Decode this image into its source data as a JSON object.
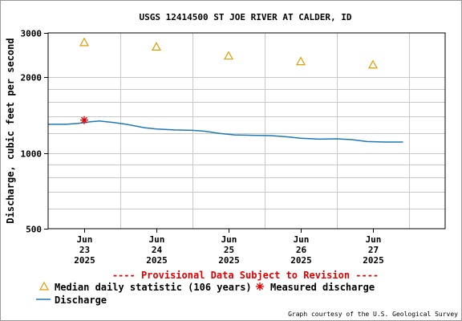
{
  "chart_data": {
    "type": "line",
    "title": "USGS 12414500 ST JOE RIVER AT CALDER, ID",
    "ylabel": "Discharge, cubic feet per second",
    "yscale": "log",
    "ylim": [
      500,
      3000
    ],
    "y_ticks": [
      500,
      1000,
      2000,
      3000
    ],
    "x_ticks": [
      {
        "day": "Jun",
        "date": "23",
        "year": "2025"
      },
      {
        "day": "Jun",
        "date": "24",
        "year": "2025"
      },
      {
        "day": "Jun",
        "date": "25",
        "year": "2025"
      },
      {
        "day": "Jun",
        "date": "26",
        "year": "2025"
      },
      {
        "day": "Jun",
        "date": "27",
        "year": "2025"
      }
    ],
    "xlim": [
      "2025-06-22 12:00",
      "2025-06-28 00:00"
    ],
    "grid": true,
    "series": [
      {
        "name": "Discharge",
        "color": "#1f78b4",
        "points": [
          [
            "2025-06-22 12:00",
            1300
          ],
          [
            "2025-06-22 18:00",
            1300
          ],
          [
            "2025-06-22 22:00",
            1310
          ],
          [
            "2025-06-23 02:00",
            1330
          ],
          [
            "2025-06-23 05:00",
            1340
          ],
          [
            "2025-06-23 10:00",
            1320
          ],
          [
            "2025-06-23 14:00",
            1300
          ],
          [
            "2025-06-23 20:00",
            1260
          ],
          [
            "2025-06-24 00:00",
            1245
          ],
          [
            "2025-06-24 06:00",
            1235
          ],
          [
            "2025-06-24 12:00",
            1230
          ],
          [
            "2025-06-24 16:00",
            1220
          ],
          [
            "2025-06-24 21:00",
            1195
          ],
          [
            "2025-06-25 02:00",
            1180
          ],
          [
            "2025-06-25 08:00",
            1175
          ],
          [
            "2025-06-25 14:00",
            1172
          ],
          [
            "2025-06-25 19:00",
            1160
          ],
          [
            "2025-06-26 00:00",
            1145
          ],
          [
            "2025-06-26 06:00",
            1135
          ],
          [
            "2025-06-26 12:00",
            1138
          ],
          [
            "2025-06-26 17:00",
            1130
          ],
          [
            "2025-06-26 22:00",
            1110
          ],
          [
            "2025-06-27 04:00",
            1105
          ],
          [
            "2025-06-27 10:00",
            1105
          ]
        ]
      },
      {
        "name": "Median daily statistic (106 years)",
        "color": "#e39b00",
        "marker": "triangle",
        "points": [
          [
            "2025-06-23 00:00",
            2750
          ],
          [
            "2025-06-24 00:00",
            2640
          ],
          [
            "2025-06-25 00:00",
            2430
          ],
          [
            "2025-06-26 00:00",
            2310
          ],
          [
            "2025-06-27 00:00",
            2240
          ]
        ]
      },
      {
        "name": "Measured discharge",
        "color": "#e00000",
        "marker": "asterisk",
        "points": [
          [
            "2025-06-23 00:00",
            1350
          ]
        ]
      }
    ]
  },
  "provisional_notice": "---- Provisional Data Subject to Revision ----",
  "credit": "Graph courtesy of the U.S. Geological Survey",
  "colors": {
    "grid": "#c8c8c8",
    "axis": "#000000",
    "warning": "#e00000"
  }
}
